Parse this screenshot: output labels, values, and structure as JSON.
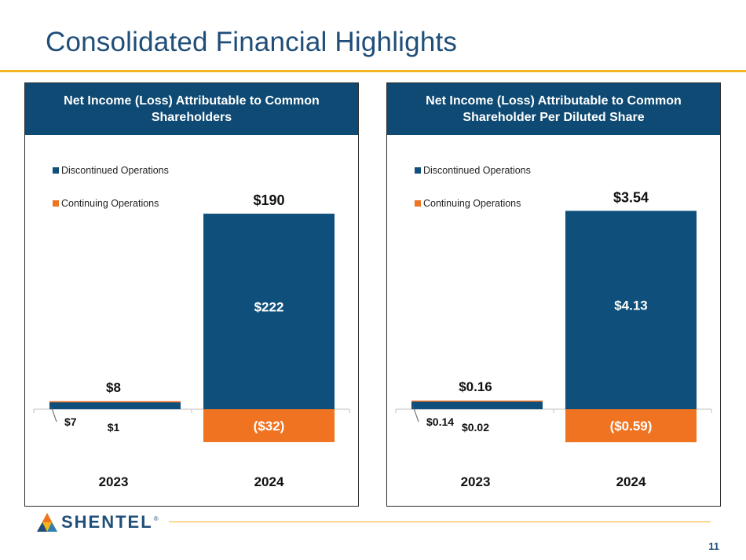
{
  "page": {
    "title": "Consolidated Financial Highlights",
    "page_number": "11",
    "logo_text": "SHENTEL",
    "logo_reg": "®"
  },
  "colors": {
    "navy": "#0e4a73",
    "bar_blue": "#0e4f7b",
    "orange": "#f07322",
    "gold": "#f2b51e"
  },
  "chart_data": [
    {
      "type": "bar",
      "stacked": true,
      "title": "Net Income (Loss) Attributable to Common Shareholders",
      "categories": [
        "2023",
        "2024"
      ],
      "series": [
        {
          "name": "Discontinued Operations",
          "values": [
            7,
            222
          ],
          "labels": [
            "$7",
            "$222"
          ],
          "color": "#0e4f7b"
        },
        {
          "name": "Continuing Operations",
          "values": [
            1,
            -32
          ],
          "labels": [
            "$1",
            "($32)"
          ],
          "color": "#f07322"
        }
      ],
      "totals": [
        8,
        190
      ],
      "total_labels": [
        "$8",
        "$190"
      ],
      "ylim": [
        -45,
        245
      ],
      "legend": "top-left",
      "grid": false
    },
    {
      "type": "bar",
      "stacked": true,
      "title": "Net Income (Loss) Attributable to Common Shareholder Per Diluted Share",
      "categories": [
        "2023",
        "2024"
      ],
      "series": [
        {
          "name": "Discontinued Operations",
          "values": [
            0.14,
            4.13
          ],
          "labels": [
            "$0.14",
            "$4.13"
          ],
          "color": "#0e4f7b"
        },
        {
          "name": "Continuing Operations",
          "values": [
            0.02,
            -0.59
          ],
          "labels": [
            "$0.02",
            "($0.59)"
          ],
          "color": "#f07322"
        }
      ],
      "totals": [
        0.16,
        3.54
      ],
      "total_labels": [
        "$0.16",
        "$3.54"
      ],
      "ylim": [
        -0.8,
        4.5
      ],
      "legend": "top-left",
      "grid": false
    }
  ]
}
